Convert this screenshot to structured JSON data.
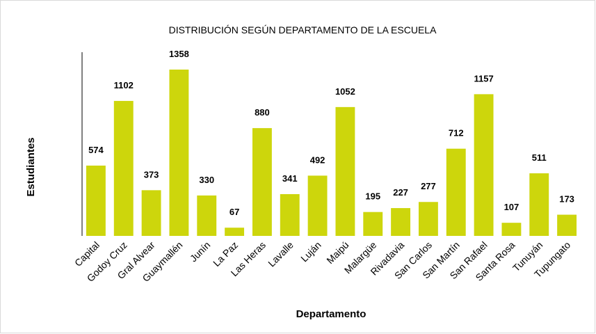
{
  "chart_data": {
    "type": "bar",
    "title": "DISTRIBUCIÓN SEGÚN DEPARTAMENTO DE LA ESCUELA",
    "x_label": "Departamento",
    "y_label": "Estudiantes",
    "categories": [
      "Capital",
      "Godoy Cruz",
      "Gral Alvear",
      "Guaymallén",
      "Junín",
      "La Paz",
      "Las Heras",
      "Lavalle",
      "Luján",
      "Maipú",
      "Malargüe",
      "Rivadavia",
      "San Carlos",
      "San Martín",
      "San Rafael",
      "Santa Rosa",
      "Tunuyán",
      "Tupungato"
    ],
    "values": [
      574,
      1102,
      373,
      1358,
      330,
      67,
      880,
      341,
      492,
      1052,
      195,
      227,
      277,
      712,
      1157,
      107,
      511,
      173
    ],
    "color": "#cdd60c",
    "ylim": [
      0,
      1500
    ],
    "grid": false
  }
}
